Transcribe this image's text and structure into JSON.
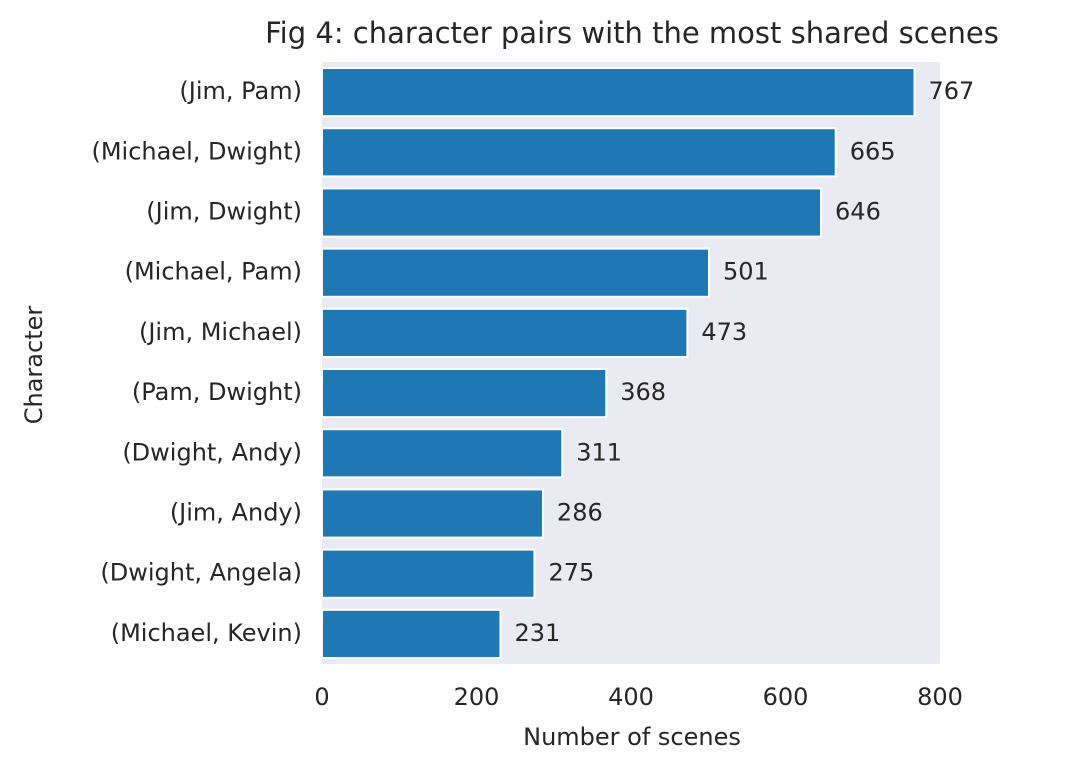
{
  "chart_data": {
    "type": "barh",
    "title": "Fig 4: character pairs with the most shared scenes",
    "xlabel": "Number of scenes",
    "ylabel": "Character",
    "categories": [
      "(Jim, Pam)",
      "(Michael, Dwight)",
      "(Jim, Dwight)",
      "(Michael, Pam)",
      "(Jim, Michael)",
      "(Pam, Dwight)",
      "(Dwight, Andy)",
      "(Jim, Andy)",
      "(Dwight, Angela)",
      "(Michael, Kevin)"
    ],
    "values": [
      767,
      665,
      646,
      501,
      473,
      368,
      311,
      286,
      275,
      231
    ],
    "color": "#1f77b4",
    "xlim": [
      0,
      800
    ],
    "xticks": [
      0,
      200,
      400,
      600,
      800
    ],
    "grid": false
  }
}
